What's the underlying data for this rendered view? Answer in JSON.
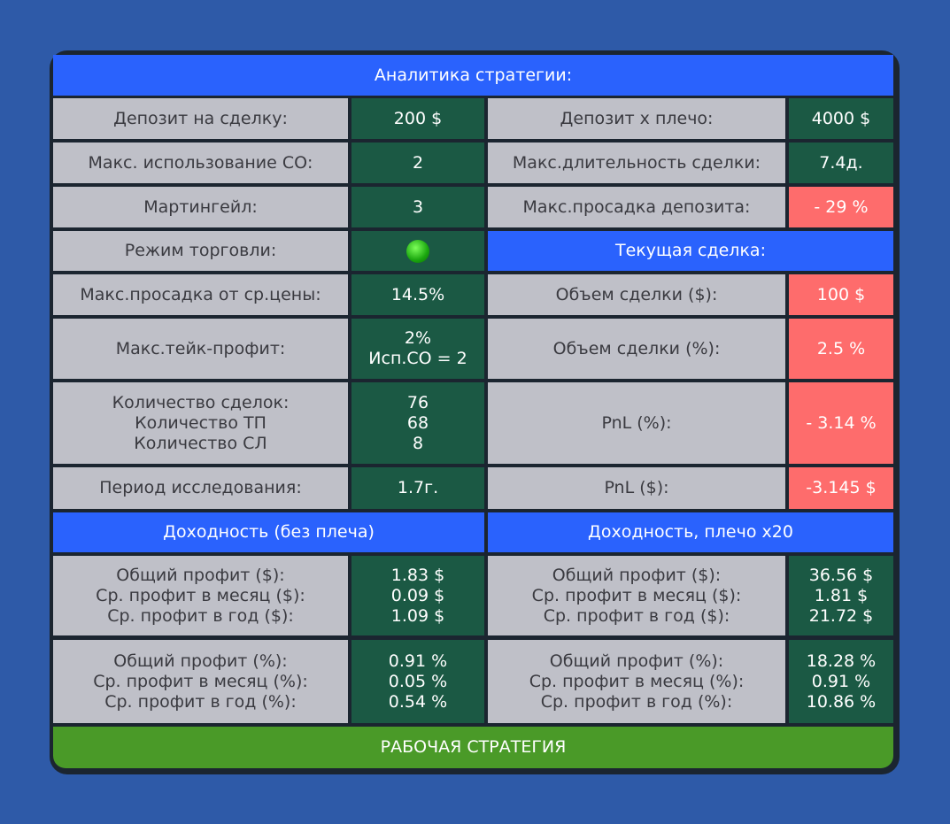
{
  "table": {
    "title": "Аналитика стратегии:",
    "rows": [
      [
        "Депозит на сделку:",
        "200 $",
        "Депозит х плечо:",
        "4000 $"
      ],
      [
        "Макс. использование СО:",
        "2",
        "Макс.длительность сделки:",
        "7.4д."
      ],
      [
        "Мартингейл:",
        "3",
        "Макс.просадка депозита:",
        "- 29 %"
      ],
      [
        "Режим торговли:",
        "Текущая сделка:"
      ],
      [
        "Макс.просадка от ср.цены:",
        "14.5%",
        "Объем сделки ($):",
        "100 $"
      ],
      [
        "Макс.тейк-профит:",
        [
          "2%",
          "Исп.СО = 2"
        ],
        "Объем сделки (%):",
        "2.5 %"
      ],
      [
        [
          "Количество сделок:",
          "Количество ТП",
          "Количество СЛ"
        ],
        [
          "76",
          "68",
          "8"
        ],
        "PnL (%):",
        "- 3.14 %"
      ],
      [
        "Период исследования:",
        "1.7г.",
        "PnL ($):",
        "-3.145 $"
      ],
      [
        "Доходность (без плеча)",
        "Доходность, плечо x20"
      ],
      [
        [
          "Общий профит ($):",
          "Ср. профит в месяц ($):",
          "Ср. профит в год ($):"
        ],
        [
          "1.83 $",
          "0.09 $",
          "1.09 $"
        ],
        [
          "Общий профит ($):",
          "Ср. профит в месяц ($):",
          "Ср. профит в год ($):"
        ],
        [
          "36.56 $",
          "1.81 $",
          "21.72 $"
        ]
      ],
      [
        [
          "Общий профит (%):",
          "Ср. профит в месяц (%):",
          "Ср. профит в год (%):"
        ],
        [
          "0.91 %",
          "0.05 %",
          "0.54 %"
        ],
        [
          "Общий профит (%):",
          "Ср. профит в месяц (%):",
          "Ср. профит в год (%):"
        ],
        [
          "18.28 %",
          "0.91 %",
          "10.86 %"
        ]
      ]
    ],
    "footer": "РАБОЧАЯ СТРАТЕГИЯ"
  }
}
